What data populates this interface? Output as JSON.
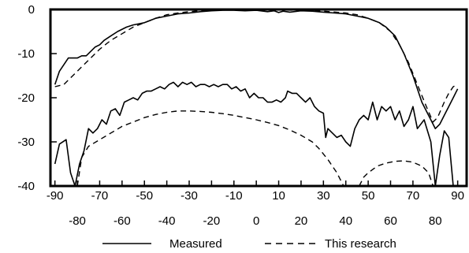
{
  "chart_data": {
    "type": "line",
    "title": "",
    "xlabel": "",
    "ylabel": "",
    "xlim": [
      -92,
      94
    ],
    "ylim": [
      -40,
      0
    ],
    "x_ticks": [
      -90,
      -80,
      -70,
      -60,
      -50,
      -40,
      -30,
      -20,
      -10,
      0,
      10,
      20,
      30,
      40,
      50,
      60,
      70,
      80,
      90
    ],
    "y_ticks": [
      0,
      -10,
      -20,
      -30,
      -40
    ],
    "grid": false,
    "legend_position": "bottom",
    "series": [
      {
        "name": "Measured",
        "style": "solid",
        "points": [
          [
            -90,
            -17
          ],
          [
            -88,
            -14
          ],
          [
            -84,
            -11
          ],
          [
            -80,
            -11
          ],
          [
            -78,
            -10.5
          ],
          [
            -76,
            -10.5
          ],
          [
            -74,
            -9.5
          ],
          [
            -72,
            -8.5
          ],
          [
            -70,
            -8
          ],
          [
            -68,
            -7
          ],
          [
            -65,
            -6
          ],
          [
            -62,
            -5
          ],
          [
            -58,
            -4
          ],
          [
            -55,
            -3.5
          ],
          [
            -50,
            -3
          ],
          [
            -45,
            -2
          ],
          [
            -40,
            -1.5
          ],
          [
            -35,
            -1
          ],
          [
            -30,
            -0.8
          ],
          [
            -25,
            -0.5
          ],
          [
            -20,
            -0.3
          ],
          [
            -15,
            -0.2
          ],
          [
            -10,
            -0.2
          ],
          [
            -5,
            -0.3
          ],
          [
            0,
            -0.2
          ],
          [
            5,
            -0.5
          ],
          [
            8,
            -0.3
          ],
          [
            10,
            -0.7
          ],
          [
            12,
            -0.4
          ],
          [
            15,
            -0.6
          ],
          [
            20,
            -0.3
          ],
          [
            25,
            -0.4
          ],
          [
            30,
            -0.6
          ],
          [
            35,
            -0.8
          ],
          [
            40,
            -1
          ],
          [
            45,
            -1.5
          ],
          [
            50,
            -2
          ],
          [
            55,
            -3
          ],
          [
            58,
            -4
          ],
          [
            62,
            -6
          ],
          [
            66,
            -10
          ],
          [
            70,
            -15
          ],
          [
            74,
            -21
          ],
          [
            78,
            -25
          ],
          [
            80,
            -27
          ],
          [
            82,
            -26
          ],
          [
            84,
            -24
          ],
          [
            86,
            -22
          ],
          [
            88,
            -20
          ],
          [
            90,
            -18
          ]
        ]
      },
      {
        "name": "This research",
        "style": "dashed",
        "points": [
          [
            -90,
            -17.5
          ],
          [
            -86,
            -17
          ],
          [
            -82,
            -15
          ],
          [
            -78,
            -13
          ],
          [
            -74,
            -11
          ],
          [
            -70,
            -9
          ],
          [
            -65,
            -7
          ],
          [
            -60,
            -5.5
          ],
          [
            -55,
            -4
          ],
          [
            -50,
            -3
          ],
          [
            -45,
            -2
          ],
          [
            -40,
            -1.2
          ],
          [
            -35,
            -0.8
          ],
          [
            -30,
            -0.5
          ],
          [
            -25,
            -0.3
          ],
          [
            -20,
            -0.2
          ],
          [
            -10,
            -0.1
          ],
          [
            0,
            0
          ],
          [
            10,
            -0.1
          ],
          [
            20,
            -0.2
          ],
          [
            30,
            -0.4
          ],
          [
            40,
            -0.8
          ],
          [
            45,
            -1.2
          ],
          [
            50,
            -2
          ],
          [
            55,
            -3
          ],
          [
            60,
            -5
          ],
          [
            64,
            -8
          ],
          [
            68,
            -12
          ],
          [
            72,
            -17
          ],
          [
            76,
            -22
          ],
          [
            79,
            -25.5
          ],
          [
            81,
            -24.5
          ],
          [
            84,
            -21
          ],
          [
            86,
            -19
          ],
          [
            88,
            -17.5
          ],
          [
            90,
            -17
          ]
        ]
      },
      {
        "name": "Measured",
        "style": "solid",
        "points": [
          [
            -90,
            -35
          ],
          [
            -88,
            -30.5
          ],
          [
            -85,
            -29.5
          ],
          [
            -83,
            -37
          ],
          [
            -81,
            -40
          ],
          [
            -79,
            -35
          ],
          [
            -77,
            -32
          ],
          [
            -75,
            -27
          ],
          [
            -73,
            -28
          ],
          [
            -71,
            -27
          ],
          [
            -69,
            -25
          ],
          [
            -67,
            -26
          ],
          [
            -65,
            -23
          ],
          [
            -63,
            -22.5
          ],
          [
            -61,
            -24
          ],
          [
            -59,
            -21
          ],
          [
            -57,
            -20.5
          ],
          [
            -55,
            -20
          ],
          [
            -53,
            -20.5
          ],
          [
            -51,
            -19
          ],
          [
            -49,
            -18.5
          ],
          [
            -47,
            -18.5
          ],
          [
            -45,
            -18
          ],
          [
            -43,
            -17.5
          ],
          [
            -41,
            -18
          ],
          [
            -39,
            -17
          ],
          [
            -37,
            -16.5
          ],
          [
            -35,
            -17.5
          ],
          [
            -33,
            -16.5
          ],
          [
            -31,
            -17
          ],
          [
            -29,
            -16.5
          ],
          [
            -27,
            -17.5
          ],
          [
            -25,
            -17
          ],
          [
            -23,
            -17
          ],
          [
            -21,
            -17.5
          ],
          [
            -19,
            -17
          ],
          [
            -17,
            -17.5
          ],
          [
            -15,
            -17
          ],
          [
            -13,
            -17
          ],
          [
            -11,
            -18
          ],
          [
            -9,
            -17.5
          ],
          [
            -7,
            -18.5
          ],
          [
            -5,
            -18
          ],
          [
            -3,
            -20
          ],
          [
            -1,
            -19
          ],
          [
            1,
            -20
          ],
          [
            3,
            -20
          ],
          [
            5,
            -21
          ],
          [
            7,
            -21
          ],
          [
            9,
            -20.5
          ],
          [
            11,
            -21
          ],
          [
            13,
            -20
          ],
          [
            14,
            -18.5
          ],
          [
            16,
            -19
          ],
          [
            18,
            -19
          ],
          [
            20,
            -20
          ],
          [
            22,
            -21
          ],
          [
            24,
            -20
          ],
          [
            26,
            -22
          ],
          [
            28,
            -23
          ],
          [
            30,
            -23.5
          ],
          [
            31,
            -29
          ],
          [
            32,
            -27
          ],
          [
            34,
            -28
          ],
          [
            36,
            -29
          ],
          [
            38,
            -28.5
          ],
          [
            40,
            -30
          ],
          [
            42,
            -31
          ],
          [
            44,
            -27
          ],
          [
            46,
            -25
          ],
          [
            48,
            -24
          ],
          [
            50,
            -25
          ],
          [
            52,
            -21
          ],
          [
            54,
            -25
          ],
          [
            56,
            -22
          ],
          [
            58,
            -23
          ],
          [
            60,
            -22
          ],
          [
            62,
            -25
          ],
          [
            64,
            -23
          ],
          [
            66,
            -26.5
          ],
          [
            68,
            -25
          ],
          [
            70,
            -22
          ],
          [
            72,
            -27
          ],
          [
            75,
            -25
          ],
          [
            78,
            -30
          ],
          [
            80,
            -40
          ],
          [
            82,
            -33
          ],
          [
            84,
            -27.5
          ],
          [
            86,
            -29
          ],
          [
            88,
            -40
          ]
        ]
      },
      {
        "name": "This research",
        "style": "dashed",
        "points": [
          [
            -80,
            -40
          ],
          [
            -78,
            -33.5
          ],
          [
            -75,
            -31
          ],
          [
            -70,
            -29.5
          ],
          [
            -65,
            -28
          ],
          [
            -60,
            -26.5
          ],
          [
            -55,
            -25.5
          ],
          [
            -50,
            -24.5
          ],
          [
            -45,
            -23.8
          ],
          [
            -40,
            -23.3
          ],
          [
            -35,
            -23
          ],
          [
            -30,
            -23
          ],
          [
            -25,
            -23.1
          ],
          [
            -20,
            -23.3
          ],
          [
            -15,
            -23.6
          ],
          [
            -10,
            -24
          ],
          [
            -5,
            -24.5
          ],
          [
            0,
            -25
          ],
          [
            5,
            -25.6
          ],
          [
            10,
            -26.3
          ],
          [
            15,
            -27.3
          ],
          [
            20,
            -28.5
          ],
          [
            25,
            -30
          ],
          [
            28,
            -31.5
          ],
          [
            32,
            -34
          ],
          [
            36,
            -37
          ],
          [
            39,
            -40
          ]
        ]
      },
      {
        "name": "This research",
        "style": "dashed",
        "points": [
          [
            46,
            -40
          ],
          [
            48,
            -38
          ],
          [
            50,
            -37
          ],
          [
            54,
            -35.5
          ],
          [
            58,
            -34.8
          ],
          [
            62,
            -34.4
          ],
          [
            66,
            -34.3
          ],
          [
            70,
            -34.6
          ],
          [
            74,
            -35.5
          ],
          [
            77,
            -37
          ],
          [
            79,
            -40
          ]
        ]
      }
    ]
  },
  "legend": {
    "entries": [
      {
        "label": "Measured",
        "style": "solid"
      },
      {
        "label": "This research",
        "style": "dashed"
      }
    ]
  }
}
